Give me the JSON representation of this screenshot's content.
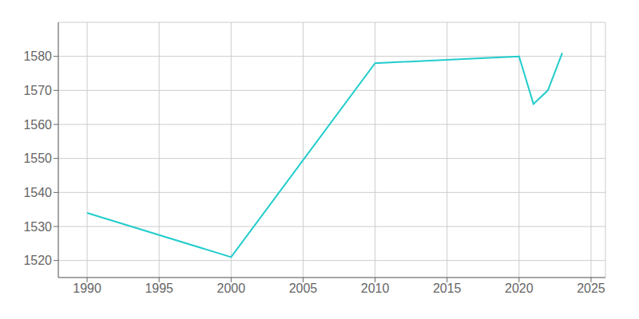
{
  "chart_data": {
    "type": "line",
    "x": [
      1990,
      2000,
      2010,
      2015,
      2020,
      2021,
      2022,
      2023
    ],
    "values": [
      1534,
      1521,
      1578,
      1579,
      1580,
      1566,
      1570,
      1581
    ],
    "color": "#22CCCC",
    "xlim": [
      1988,
      2026
    ],
    "ylim": [
      1515,
      1590
    ],
    "xticks": [
      1990,
      1995,
      2000,
      2005,
      2010,
      2015,
      2020,
      2025
    ],
    "yticks": [
      1520,
      1530,
      1540,
      1550,
      1560,
      1570,
      1580
    ],
    "grid": true
  }
}
